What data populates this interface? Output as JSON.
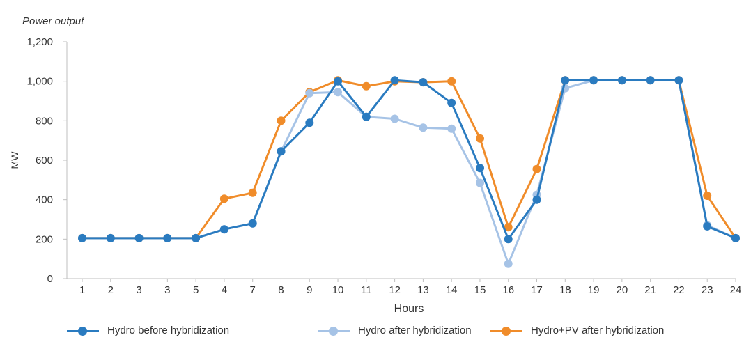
{
  "chart_data": {
    "type": "line",
    "title": "Power output",
    "xlabel": "Hours",
    "ylabel": "MW",
    "categories": [
      "1",
      "2",
      "3",
      "3",
      "5",
      "4",
      "7",
      "8",
      "9",
      "10",
      "11",
      "12",
      "13",
      "14",
      "15",
      "16",
      "17",
      "18",
      "19",
      "20",
      "21",
      "22",
      "23",
      "24"
    ],
    "ylim": [
      0,
      1200
    ],
    "yticks": [
      "0",
      "200",
      "400",
      "600",
      "800",
      "1,000",
      "1,200"
    ],
    "ytick_values": [
      0,
      200,
      400,
      600,
      800,
      1000,
      1200
    ],
    "grid": false,
    "legend_position": "bottom",
    "series": [
      {
        "name": "Hydro+PV after hybridization",
        "color": "#f08c2a",
        "values": [
          205,
          205,
          205,
          205,
          205,
          405,
          435,
          800,
          945,
          1005,
          975,
          1000,
          995,
          1000,
          710,
          260,
          555,
          1005,
          1005,
          1005,
          1005,
          1005,
          420,
          205
        ]
      },
      {
        "name": "Hydro after hybridization",
        "color": "#a6c3e6",
        "values": [
          205,
          205,
          205,
          205,
          205,
          250,
          280,
          645,
          940,
          945,
          820,
          810,
          765,
          760,
          485,
          75,
          425,
          965,
          1005,
          1005,
          1005,
          1005,
          270,
          205
        ]
      },
      {
        "name": "Hydro before hybridization",
        "color": "#2a7bc0",
        "values": [
          205,
          205,
          205,
          205,
          205,
          250,
          280,
          645,
          790,
          1000,
          820,
          1005,
          995,
          890,
          560,
          200,
          400,
          1005,
          1005,
          1005,
          1005,
          1005,
          265,
          205
        ]
      }
    ]
  },
  "legend": {
    "items": [
      {
        "label": "Hydro before hybridization",
        "color": "#2a7bc0"
      },
      {
        "label": "Hydro after hybridization",
        "color": "#a6c3e6"
      },
      {
        "label": "Hydro+PV after hybridization",
        "color": "#f08c2a"
      }
    ]
  }
}
